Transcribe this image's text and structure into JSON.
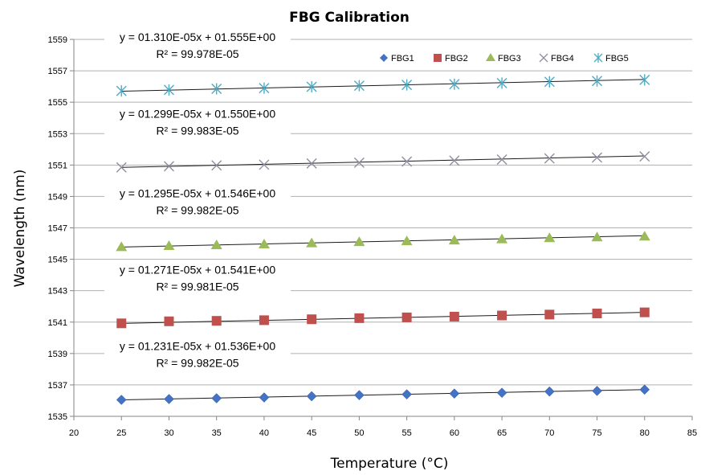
{
  "chart_data": {
    "type": "scatter",
    "title": "FBG Calibration",
    "xlabel": "Temperature (°C)",
    "ylabel": "Wavelength (nm)",
    "xlim": [
      20,
      85
    ],
    "ylim": [
      1535,
      1559
    ],
    "x_ticks": [
      20,
      25,
      30,
      35,
      40,
      45,
      50,
      55,
      60,
      65,
      70,
      75,
      80,
      85
    ],
    "y_ticks": [
      1535,
      1537,
      1539,
      1541,
      1543,
      1545,
      1547,
      1549,
      1551,
      1553,
      1555,
      1557,
      1559
    ],
    "grid": "horizontal",
    "legend_position": "top-right",
    "x": [
      25,
      30,
      35,
      40,
      45,
      50,
      55,
      60,
      65,
      70,
      75,
      80
    ],
    "series": [
      {
        "name": "FBG1",
        "marker": "diamond",
        "color": "#4472C4",
        "values": [
          1536.05,
          1536.1,
          1536.15,
          1536.2,
          1536.28,
          1536.35,
          1536.4,
          1536.45,
          1536.5,
          1536.58,
          1536.62,
          1536.7
        ],
        "trendline": [
          1536.05,
          1536.7
        ],
        "equation": "y = 01.231E-05x + 01.536E+00",
        "r2": "R² = 99.982E-05"
      },
      {
        "name": "FBG2",
        "marker": "square",
        "color": "#C0504D",
        "values": [
          1540.92,
          1541.05,
          1541.08,
          1541.12,
          1541.18,
          1541.25,
          1541.3,
          1541.35,
          1541.42,
          1541.48,
          1541.55,
          1541.62
        ],
        "trendline": [
          1540.92,
          1541.62
        ],
        "equation": "y = 01.271E-05x + 01.541E+00",
        "r2": "R² = 99.981E-05"
      },
      {
        "name": "FBG3",
        "marker": "triangle",
        "color": "#9BBB59",
        "values": [
          1545.78,
          1545.85,
          1545.9,
          1545.95,
          1546.02,
          1546.1,
          1546.15,
          1546.2,
          1546.28,
          1546.35,
          1546.4,
          1546.45
        ],
        "trendline": [
          1545.78,
          1546.5
        ],
        "equation": "y = 01.295E-05x + 01.546E+00",
        "r2": "R² = 99.982E-05"
      },
      {
        "name": "FBG4",
        "marker": "x",
        "color": "#8E8EA0",
        "values": [
          1550.85,
          1550.92,
          1550.98,
          1551.02,
          1551.1,
          1551.15,
          1551.22,
          1551.28,
          1551.35,
          1551.42,
          1551.48,
          1551.55
        ],
        "trendline": [
          1550.85,
          1551.58
        ],
        "equation": "y = 01.299E-05x + 01.550E+00",
        "r2": "R² = 99.983E-05"
      },
      {
        "name": "FBG5",
        "marker": "star",
        "color": "#4BACC6",
        "values": [
          1555.72,
          1555.78,
          1555.85,
          1555.9,
          1555.98,
          1556.05,
          1556.1,
          1556.15,
          1556.22,
          1556.3,
          1556.35,
          1556.42
        ],
        "trendline": [
          1555.7,
          1556.45
        ],
        "equation": "y = 01.310E-05x + 01.555E+00",
        "r2": "R² = 99.978E-05"
      }
    ]
  }
}
